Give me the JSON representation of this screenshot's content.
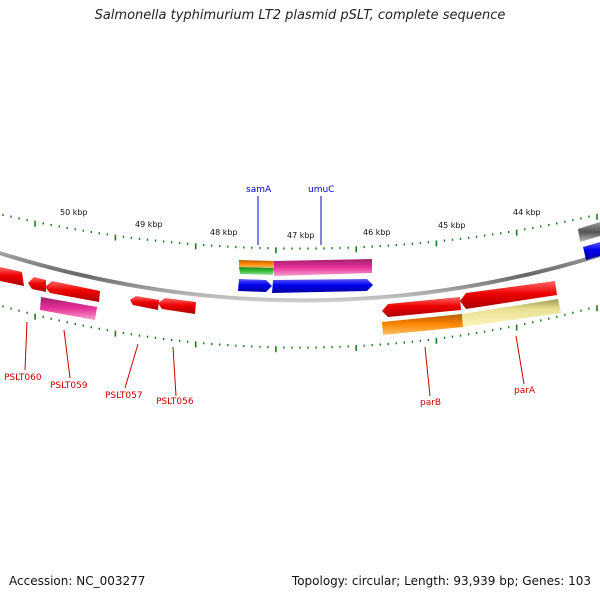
{
  "title": "Salmonella typhimurium LT2 plasmid pSLT, complete sequence",
  "footer": {
    "accession": "Accession: NC_003277",
    "summary": "Topology: circular; Length: 93,939 bp; Genes: 103"
  },
  "ticks": [
    {
      "label": "50 kbp"
    },
    {
      "label": "49 kbp"
    },
    {
      "label": "48 kbp"
    },
    {
      "label": "47 kbp"
    },
    {
      "label": "46 kbp"
    },
    {
      "label": "45 kbp"
    },
    {
      "label": "44 kbp"
    }
  ],
  "genes_above": [
    {
      "label": "samA",
      "color": "#0000cc"
    },
    {
      "label": "umuC",
      "color": "#0000cc"
    }
  ],
  "genes_below": [
    {
      "label": "PSLT060",
      "color": "#cc0000"
    },
    {
      "label": "PSLT059",
      "color": "#cc0000"
    },
    {
      "label": "PSLT057",
      "color": "#cc0000"
    },
    {
      "label": "PSLT056",
      "color": "#cc0000"
    },
    {
      "label": "parB",
      "color": "#cc0000"
    },
    {
      "label": "parA",
      "color": "#cc0000"
    }
  ],
  "colors": {
    "backbone": "#888888",
    "tick": "#1e7a1e",
    "cds_red": "#ee0000",
    "cds_blue": "#0000ee",
    "pink": "#e8309a",
    "orange": "#ff8800",
    "green": "#33bb33",
    "pale_yellow": "#f0e68c",
    "gray": "#666666"
  }
}
